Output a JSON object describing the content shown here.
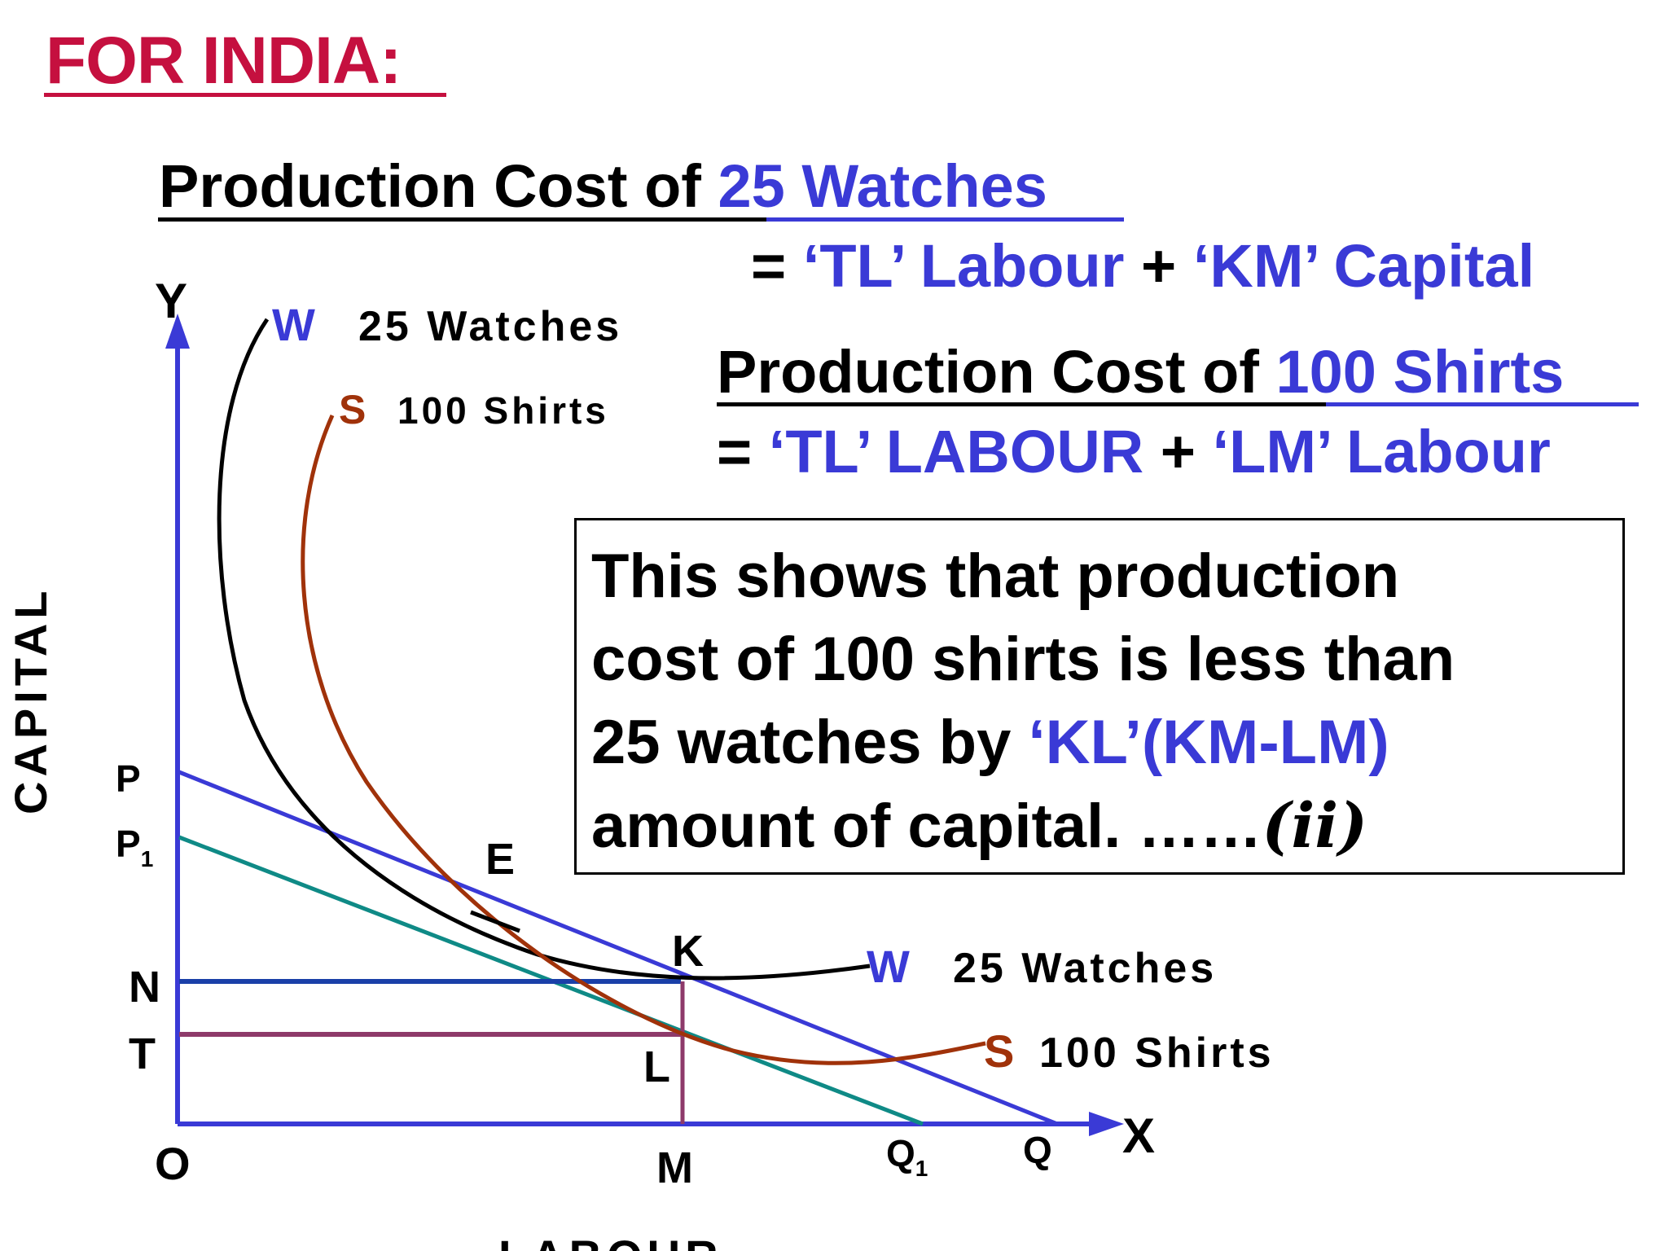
{
  "heading": "FOR INDIA:",
  "watches_cost": {
    "prefix": "Production Cost of ",
    "highlight": "25 Watches",
    "eq_prefix": "= ",
    "term1": "‘TL’ Labour",
    "plus": " + ",
    "term2": "‘KM’ Capital"
  },
  "shirts_cost": {
    "prefix": "Production Cost of ",
    "highlight": "100 Shirts",
    "eq_prefix": "= ",
    "term1": "‘TL’ LABOUR",
    "plus": " + ",
    "term2": "‘LM’ Labour"
  },
  "note": {
    "line1": "This shows that production",
    "line2": "cost of  100 shirts is less than",
    "line3_a": "25 watches by ",
    "line3_b": "‘KL’(KM-LM)",
    "line4_a": "amount of capital. ……",
    "line4_b": "(ii)"
  },
  "diagram": {
    "y_axis_letter": "Y",
    "x_axis_letter": "X",
    "y_axis_title": "CAPITAL",
    "x_axis_title": "LABOUR",
    "origin": "O",
    "points": {
      "P": "P",
      "P1": "P",
      "P1_sub": "1",
      "N": "N",
      "T": "T",
      "E": "E",
      "K": "K",
      "L": "L",
      "M": "M",
      "Q": "Q",
      "Q1": "Q",
      "Q1_sub": "1"
    },
    "curve_w": {
      "letter": "W",
      "label": "25 Watches"
    },
    "curve_s": {
      "letter": "S",
      "label": "100 Shirts"
    },
    "colors": {
      "axis": "#3a3ad6",
      "watches_curve": "#000000",
      "shirts_curve": "#a0320a",
      "iso_cost_pq": "#3a3ad6",
      "iso_cost_p1q1": "#0f8a86",
      "line_nk": "#1a3fa8",
      "line_tl": "#8e3a6a",
      "line_km": "#8e3a6a",
      "heading": "#c5103f",
      "highlight": "#3a3ad6"
    }
  }
}
